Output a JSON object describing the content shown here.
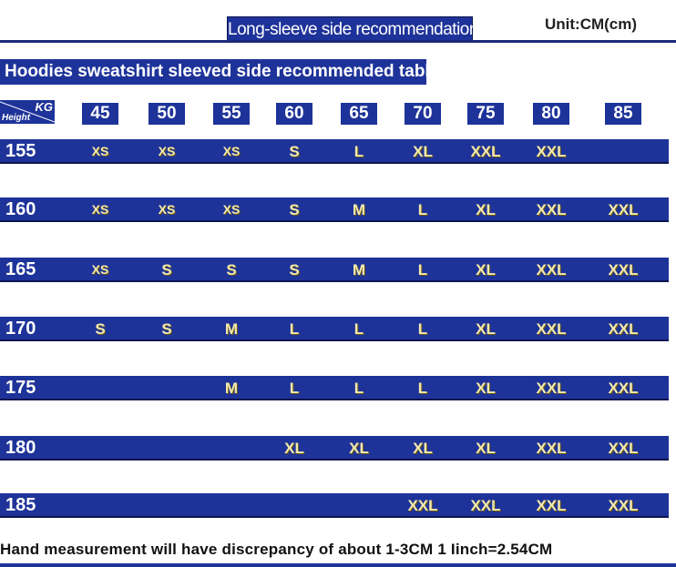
{
  "header": {
    "title": "Long-sleeve side recommendation tale",
    "unit": "Unit:CM(cm)"
  },
  "table": {
    "subtitle": "Hoodies sweatshirt sleeved side recommended table",
    "corner_top": "KG",
    "corner_bottom": "Height",
    "weights": [
      "45",
      "50",
      "55",
      "60",
      "65",
      "70",
      "75",
      "80",
      "85"
    ],
    "rows": [
      {
        "height": "155",
        "sizes": [
          "XS",
          "XS",
          "XS",
          "S",
          "L",
          "XL",
          "XXL",
          "XXL",
          ""
        ]
      },
      {
        "height": "160",
        "sizes": [
          "XS",
          "XS",
          "XS",
          "S",
          "M",
          "L",
          "XL",
          "XXL",
          "XXL"
        ]
      },
      {
        "height": "165",
        "sizes": [
          "XS",
          "S",
          "S",
          "S",
          "M",
          "L",
          "XL",
          "XXL",
          "XXL"
        ]
      },
      {
        "height": "170",
        "sizes": [
          "S",
          "S",
          "M",
          "L",
          "L",
          "L",
          "XL",
          "XXL",
          "XXL"
        ]
      },
      {
        "height": "175",
        "sizes": [
          "",
          "",
          "M",
          "L",
          "L",
          "L",
          "XL",
          "XXL",
          "XXL"
        ]
      },
      {
        "height": "180",
        "sizes": [
          "",
          "",
          "",
          "XL",
          "XL",
          "XL",
          "XL",
          "XXL",
          "XXL"
        ]
      },
      {
        "height": "185",
        "sizes": [
          "",
          "",
          "",
          "",
          "",
          "XXL",
          "XXL",
          "XXL",
          "XXL"
        ]
      }
    ]
  },
  "footer": {
    "note": "Hand measurement will have discrepancy of about  1-3CM   1 Iinch=2.54CM"
  },
  "colors": {
    "band": "#1e3399",
    "size_text": "#f2e9b0",
    "header_text": "#ffffff"
  }
}
